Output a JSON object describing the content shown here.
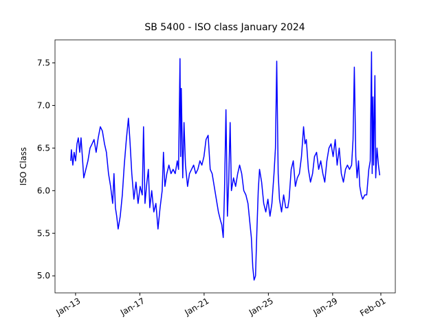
{
  "chart_data": {
    "type": "line",
    "title": "SB 5400 - ISO class January 2024",
    "y_label": "ISO Class",
    "x": [
      12.7,
      12.74,
      12.83,
      12.91,
      13.0,
      13.09,
      13.17,
      13.26,
      13.34,
      13.43,
      13.51,
      13.64,
      13.77,
      13.9,
      14.03,
      14.15,
      14.28,
      14.41,
      14.54,
      14.67,
      14.8,
      14.92,
      15.05,
      15.18,
      15.31,
      15.39,
      15.48,
      15.56,
      15.65,
      15.78,
      15.91,
      16.03,
      16.16,
      16.29,
      16.38,
      16.5,
      16.63,
      16.76,
      16.89,
      17.02,
      17.15,
      17.23,
      17.32,
      17.44,
      17.53,
      17.62,
      17.74,
      17.87,
      18.0,
      18.13,
      18.26,
      18.39,
      18.47,
      18.56,
      18.68,
      18.81,
      18.94,
      19.07,
      19.2,
      19.33,
      19.41,
      19.5,
      19.54,
      19.58,
      19.67,
      19.75,
      19.84,
      19.97,
      20.09,
      20.22,
      20.35,
      20.48,
      20.61,
      20.74,
      20.86,
      20.99,
      21.12,
      21.25,
      21.38,
      21.5,
      21.63,
      21.76,
      21.89,
      22.02,
      22.1,
      22.19,
      22.27,
      22.36,
      22.45,
      22.53,
      22.62,
      22.7,
      22.83,
      22.96,
      23.09,
      23.21,
      23.34,
      23.47,
      23.6,
      23.73,
      23.86,
      23.94,
      24.03,
      24.11,
      24.2,
      24.28,
      24.37,
      24.45,
      24.58,
      24.71,
      24.84,
      24.97,
      25.1,
      25.22,
      25.35,
      25.44,
      25.52,
      25.61,
      25.69,
      25.82,
      25.95,
      26.08,
      26.21,
      26.29,
      26.42,
      26.55,
      26.68,
      26.8,
      26.93,
      27.06,
      27.19,
      27.28,
      27.36,
      27.49,
      27.62,
      27.75,
      27.87,
      28.0,
      28.13,
      28.26,
      28.39,
      28.51,
      28.64,
      28.77,
      28.9,
      29.03,
      29.16,
      29.28,
      29.41,
      29.54,
      29.67,
      29.8,
      29.92,
      30.05,
      30.18,
      30.27,
      30.35,
      30.44,
      30.52,
      30.61,
      30.69,
      30.78,
      30.87,
      31.0,
      31.12,
      31.25,
      31.34,
      31.42,
      31.46,
      31.51,
      31.55,
      31.63,
      31.68,
      31.76,
      31.85,
      31.93
    ],
    "series": [
      {
        "name": "ISO class",
        "color": "#0000ff",
        "values": [
          6.35,
          6.48,
          6.3,
          6.45,
          6.35,
          6.55,
          6.62,
          6.45,
          6.62,
          6.38,
          6.15,
          6.25,
          6.35,
          6.5,
          6.55,
          6.6,
          6.45,
          6.62,
          6.75,
          6.7,
          6.55,
          6.45,
          6.2,
          6.05,
          5.85,
          6.2,
          5.8,
          5.7,
          5.55,
          5.7,
          5.95,
          6.3,
          6.6,
          6.85,
          6.6,
          6.2,
          5.9,
          6.1,
          5.85,
          6.05,
          5.95,
          6.75,
          5.85,
          6.1,
          6.25,
          5.8,
          6.0,
          5.75,
          5.85,
          5.55,
          5.8,
          6.0,
          6.45,
          6.05,
          6.2,
          6.3,
          6.2,
          6.25,
          6.2,
          6.35,
          6.25,
          7.55,
          6.4,
          7.2,
          6.15,
          6.8,
          6.3,
          6.05,
          6.2,
          6.25,
          6.3,
          6.2,
          6.25,
          6.35,
          6.3,
          6.4,
          6.6,
          6.65,
          6.25,
          6.2,
          6.05,
          5.9,
          5.75,
          5.65,
          5.6,
          5.45,
          6.0,
          6.95,
          5.7,
          6.1,
          6.8,
          6.0,
          6.15,
          6.05,
          6.2,
          6.3,
          6.2,
          6.0,
          5.95,
          5.85,
          5.6,
          5.45,
          5.1,
          4.95,
          5.0,
          5.5,
          6.0,
          6.25,
          6.1,
          5.85,
          5.75,
          5.9,
          5.7,
          5.85,
          6.2,
          6.5,
          7.52,
          6.2,
          5.9,
          5.75,
          5.95,
          5.8,
          5.8,
          5.9,
          6.25,
          6.35,
          6.05,
          6.15,
          6.2,
          6.4,
          6.75,
          6.55,
          6.6,
          6.25,
          6.1,
          6.2,
          6.4,
          6.45,
          6.25,
          6.35,
          6.2,
          6.1,
          6.35,
          6.5,
          6.55,
          6.4,
          6.6,
          6.3,
          6.5,
          6.2,
          6.1,
          6.25,
          6.3,
          6.25,
          6.3,
          6.6,
          7.45,
          6.4,
          6.15,
          6.35,
          6.05,
          5.95,
          5.9,
          5.95,
          5.95,
          6.25,
          6.35,
          7.63,
          6.2,
          7.1,
          6.3,
          7.35,
          6.15,
          6.5,
          6.3,
          6.18
        ]
      }
    ],
    "xlim": [
      11.72,
      32.9
    ],
    "xticks": [
      {
        "value": 13,
        "label": "Jan-13"
      },
      {
        "value": 17,
        "label": "Jan-17"
      },
      {
        "value": 21,
        "label": "Jan-21"
      },
      {
        "value": 25,
        "label": "Jan-25"
      },
      {
        "value": 29,
        "label": "Jan-29"
      },
      {
        "value": 32,
        "label": "Feb-01"
      }
    ],
    "ylim": [
      4.8,
      7.77
    ],
    "yticks": [
      {
        "value": 5,
        "label": "5.0"
      },
      5.5,
      {
        "value": 6,
        "label": "6.0"
      },
      6.5,
      {
        "value": 7,
        "label": "7.0"
      },
      7.5
    ],
    "grid": false
  }
}
